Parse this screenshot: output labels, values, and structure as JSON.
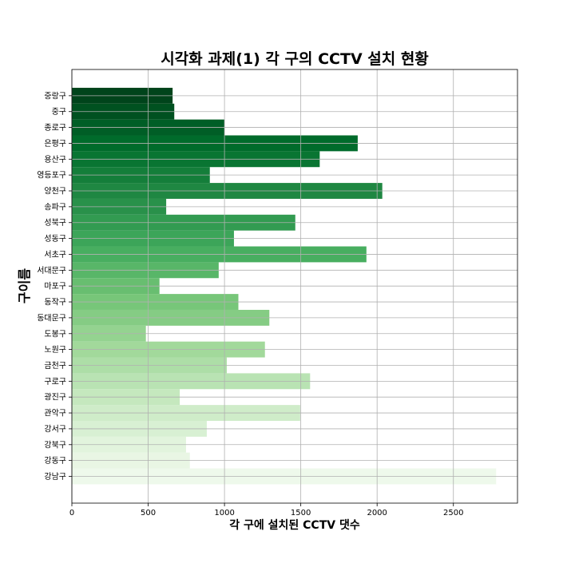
{
  "chart_data": {
    "type": "bar",
    "orientation": "horizontal",
    "title": "시각화 과제(1) 각 구의 CCTV 설치 현황",
    "xlabel": "각 구에 설치된 CCTV 댓수",
    "ylabel": "구이름",
    "xlim": [
      0,
      2920
    ],
    "xticks": [
      0,
      500,
      1000,
      1500,
      2000,
      2500
    ],
    "grid": true,
    "colormap": "Greens",
    "categories": [
      "강남구",
      "강동구",
      "강북구",
      "강서구",
      "관악구",
      "광진구",
      "구로구",
      "금천구",
      "노원구",
      "도봉구",
      "동대문구",
      "동작구",
      "마포구",
      "서대문구",
      "서초구",
      "성동구",
      "성북구",
      "송파구",
      "양천구",
      "영등포구",
      "용산구",
      "은평구",
      "종로구",
      "중구",
      "중랑구"
    ],
    "values": [
      2780,
      773,
      748,
      884,
      1496,
      707,
      1561,
      1015,
      1265,
      485,
      1294,
      1091,
      574,
      962,
      1930,
      1062,
      1464,
      618,
      2034,
      904,
      1624,
      1873,
      1002,
      671,
      660
    ]
  }
}
